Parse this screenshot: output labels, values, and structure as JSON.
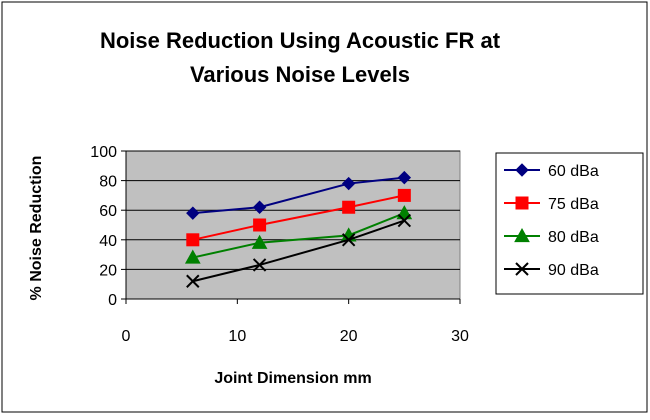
{
  "chart_data": {
    "type": "line",
    "title_lines": [
      "Noise Reduction Using Acoustic FR at",
      "Various Noise Levels"
    ],
    "xlabel": "Joint Dimension mm",
    "ylabel": "% Noise Reduction",
    "xlim": [
      0,
      30
    ],
    "ylim": [
      0,
      100
    ],
    "x_ticks": [
      0,
      10,
      20,
      30
    ],
    "y_ticks": [
      0,
      20,
      40,
      60,
      80,
      100
    ],
    "grid": "horizontal major gridlines",
    "plot_background": "#c0c0c0",
    "legend_position": "right",
    "x": [
      6,
      12,
      20,
      25
    ],
    "series": [
      {
        "name": "60 dBa",
        "values": [
          58,
          62,
          78,
          82
        ],
        "color": "#000080",
        "marker": "diamond"
      },
      {
        "name": "75 dBa",
        "values": [
          40,
          50,
          62,
          70
        ],
        "color": "#ff0000",
        "marker": "square"
      },
      {
        "name": "80 dBa",
        "values": [
          28,
          38,
          43,
          58
        ],
        "color": "#008000",
        "marker": "triangle"
      },
      {
        "name": "90 dBa",
        "values": [
          12,
          23,
          40,
          53
        ],
        "color": "#000000",
        "marker": "x"
      }
    ]
  }
}
